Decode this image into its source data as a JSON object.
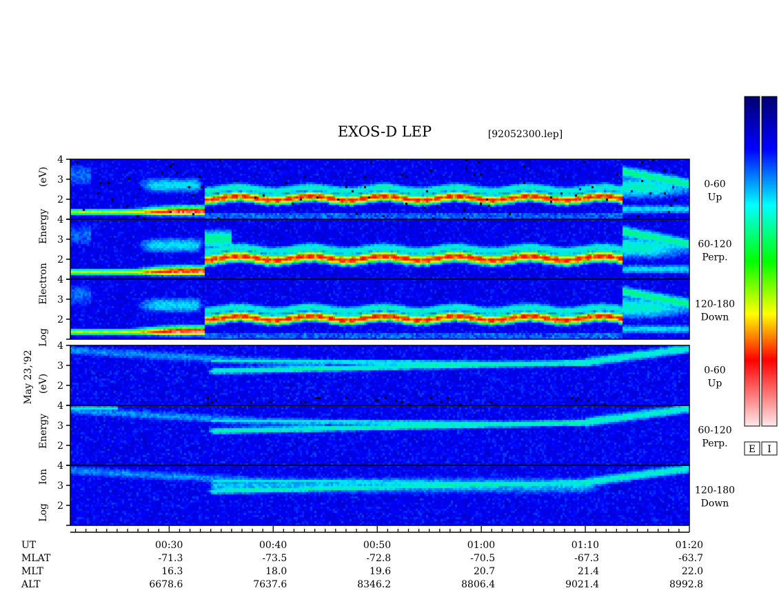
{
  "chart_data": {
    "type": "heatmap",
    "title": "EXOS-D LEP",
    "file_label": "[92052300.lep]",
    "date_label": "May 23,'92",
    "x_axis": {
      "label_rows": [
        {
          "name": "UT",
          "values": [
            "00:30",
            "00:40",
            "00:50",
            "01:00",
            "01:10",
            "01:20"
          ]
        },
        {
          "name": "MLAT",
          "values": [
            "-71.3",
            "-73.5",
            "-72.8",
            "-70.5",
            "-67.3",
            "-63.7"
          ]
        },
        {
          "name": "MLT",
          "values": [
            "16.3",
            "18.0",
            "19.6",
            "20.7",
            "21.4",
            "22.0"
          ]
        },
        {
          "name": "ALT",
          "values": [
            "6678.6",
            "7637.6",
            "8346.2",
            "8806.4",
            "9021.4",
            "8992.8"
          ]
        }
      ],
      "range_minutes": [
        20.5,
        80
      ],
      "major_tick_minutes": [
        30,
        40,
        50,
        60,
        70,
        80
      ],
      "minor_tick_interval_minutes": 1
    },
    "groups": [
      {
        "species": "electron",
        "ylabel": [
          "Log",
          "Electron",
          "Energy",
          "(eV)"
        ],
        "yticks": [
          "1",
          "2",
          "3",
          "4"
        ],
        "panels": [
          {
            "pitch_range": "0-60",
            "direction": "Up"
          },
          {
            "pitch_range": "60-120",
            "direction": "Perp."
          },
          {
            "pitch_range": "120-180",
            "direction": "Down"
          }
        ]
      },
      {
        "species": "ion",
        "ylabel": [
          "Log",
          "Ion",
          "Energy",
          "(eV)"
        ],
        "yticks": [
          "1",
          "2",
          "3",
          "4"
        ],
        "panels": [
          {
            "pitch_range": "0-60",
            "direction": "Up"
          },
          {
            "pitch_range": "60-120",
            "direction": "Perp."
          },
          {
            "pitch_range": "120-180",
            "direction": "Down"
          }
        ]
      }
    ],
    "y_range_log_eV": [
      1,
      4
    ],
    "colorbar": {
      "labels": [
        "E",
        "I"
      ],
      "colors": [
        "#000080",
        "#0000ff",
        "#00ffff",
        "#00ff00",
        "#ffff00",
        "#ff0000",
        "#ffd8d8"
      ]
    }
  }
}
